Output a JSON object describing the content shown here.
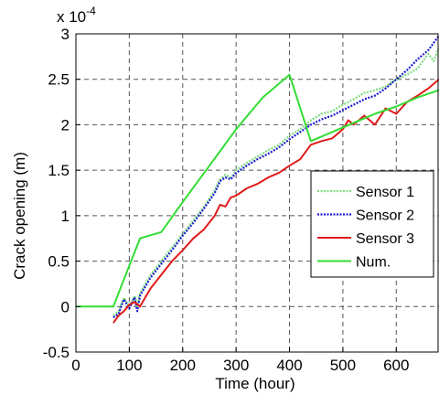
{
  "chart_data": {
    "type": "line",
    "xlabel": "Time (hour)",
    "ylabel": "Crack opening (m)",
    "y_multiplier_label": "x 10",
    "y_multiplier_exponent": "-4",
    "xlim": [
      0,
      680
    ],
    "ylim": [
      -0.5,
      3
    ],
    "xticks": [
      0,
      100,
      200,
      300,
      400,
      500,
      600
    ],
    "yticks": [
      -0.5,
      0,
      0.5,
      1,
      1.5,
      2,
      2.5,
      3
    ],
    "xtick_labels": [
      "0",
      "100",
      "200",
      "300",
      "400",
      "500",
      "600"
    ],
    "ytick_labels": [
      "-0.5",
      "0",
      "0.5",
      "1",
      "1.5",
      "2",
      "2.5",
      "3"
    ],
    "grid": true,
    "legend_position": "right",
    "series": [
      {
        "name": "Sensor 1",
        "color": "#7ddc7d",
        "style": "dotted",
        "x": [
          70,
          80,
          90,
          100,
          110,
          115,
          120,
          130,
          140,
          160,
          180,
          200,
          220,
          240,
          260,
          270,
          280,
          290,
          300,
          320,
          340,
          360,
          380,
          400,
          420,
          440,
          460,
          480,
          500,
          520,
          540,
          560,
          580,
          600,
          620,
          640,
          660,
          670,
          680
        ],
        "y": [
          -0.1,
          -0.05,
          0.1,
          0.0,
          0.12,
          0.0,
          0.15,
          0.25,
          0.35,
          0.5,
          0.65,
          0.8,
          0.95,
          1.1,
          1.28,
          1.4,
          1.45,
          1.42,
          1.5,
          1.58,
          1.65,
          1.72,
          1.78,
          1.88,
          1.95,
          2.05,
          2.12,
          2.15,
          2.22,
          2.28,
          2.35,
          2.38,
          2.42,
          2.5,
          2.55,
          2.62,
          2.78,
          2.7,
          2.85
        ]
      },
      {
        "name": "Sensor 2",
        "color": "#1a1ad2",
        "style": "dotted",
        "x": [
          70,
          80,
          90,
          100,
          110,
          115,
          120,
          130,
          140,
          160,
          180,
          200,
          220,
          240,
          260,
          270,
          280,
          290,
          300,
          320,
          340,
          360,
          380,
          400,
          420,
          440,
          460,
          480,
          500,
          520,
          540,
          560,
          580,
          600,
          620,
          640,
          660,
          670,
          680
        ],
        "y": [
          -0.12,
          -0.08,
          0.08,
          -0.02,
          0.1,
          -0.05,
          0.12,
          0.22,
          0.32,
          0.47,
          0.62,
          0.78,
          0.92,
          1.08,
          1.25,
          1.38,
          1.42,
          1.4,
          1.47,
          1.55,
          1.62,
          1.68,
          1.75,
          1.84,
          1.92,
          2.0,
          2.06,
          2.1,
          2.16,
          2.22,
          2.28,
          2.32,
          2.4,
          2.5,
          2.6,
          2.72,
          2.82,
          2.9,
          2.98
        ]
      },
      {
        "name": "Sensor 3",
        "color": "#e01b1b",
        "style": "solid",
        "x": [
          70,
          80,
          90,
          100,
          110,
          120,
          130,
          140,
          160,
          180,
          200,
          220,
          240,
          260,
          270,
          280,
          290,
          300,
          320,
          340,
          360,
          380,
          400,
          420,
          440,
          460,
          480,
          500,
          510,
          520,
          540,
          560,
          580,
          600,
          620,
          640,
          660,
          680
        ],
        "y": [
          -0.18,
          -0.1,
          -0.05,
          0.02,
          0.05,
          0.0,
          0.1,
          0.2,
          0.35,
          0.5,
          0.62,
          0.75,
          0.85,
          1.0,
          1.12,
          1.1,
          1.2,
          1.22,
          1.3,
          1.35,
          1.42,
          1.47,
          1.55,
          1.62,
          1.78,
          1.82,
          1.85,
          1.95,
          2.05,
          2.0,
          2.1,
          2.0,
          2.18,
          2.12,
          2.25,
          2.32,
          2.4,
          2.5
        ]
      },
      {
        "name": "Num.",
        "color": "#33dd33",
        "style": "solid",
        "x": [
          0,
          70,
          120,
          160,
          200,
          250,
          300,
          350,
          400,
          440,
          480,
          520,
          560,
          600,
          640,
          680
        ],
        "y": [
          0,
          0,
          0.75,
          0.82,
          1.15,
          1.55,
          1.95,
          2.3,
          2.55,
          1.82,
          1.92,
          2.02,
          2.12,
          2.2,
          2.3,
          2.38
        ]
      }
    ]
  }
}
